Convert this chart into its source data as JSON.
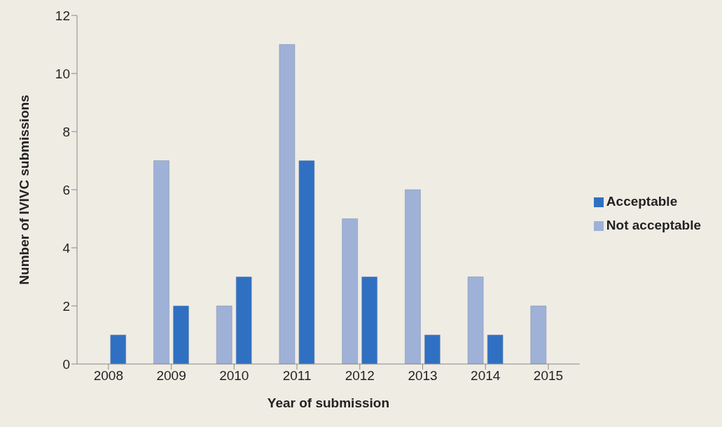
{
  "chart_data": {
    "type": "bar",
    "xlabel": "Year of submission",
    "ylabel": "Number of IVIVC submissions",
    "categories": [
      "2008",
      "2009",
      "2010",
      "2011",
      "2012",
      "2013",
      "2014",
      "2015"
    ],
    "series": [
      {
        "name": "Not acceptable",
        "color": "#9fb1d6",
        "values": [
          0,
          7,
          2,
          11,
          5,
          6,
          3,
          2
        ]
      },
      {
        "name": "Acceptable",
        "color": "#2f70c2",
        "values": [
          1,
          2,
          3,
          7,
          3,
          1,
          1,
          0
        ]
      }
    ],
    "ylim": [
      0,
      12
    ],
    "yticks": [
      0,
      2,
      4,
      6,
      8,
      10,
      12
    ],
    "grid": false,
    "legend": "right"
  }
}
